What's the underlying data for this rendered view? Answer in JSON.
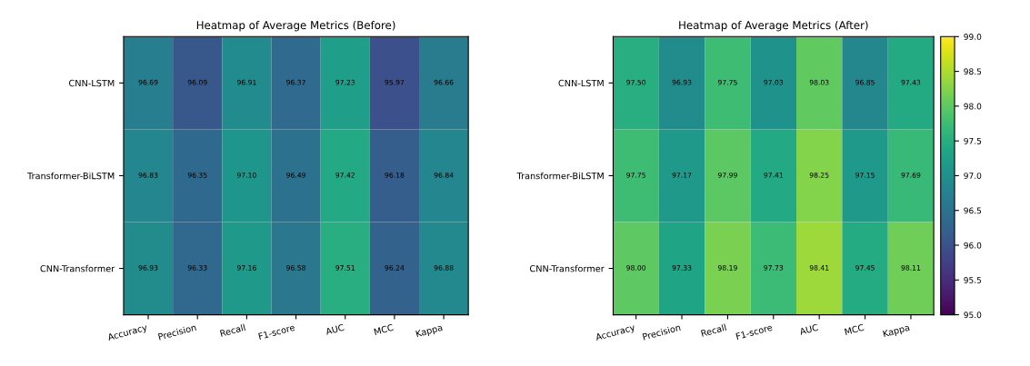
{
  "chart_data": [
    {
      "type": "heatmap",
      "title": "Heatmap of Average Metrics (Before)",
      "categories": [
        "Accuracy",
        "Precision",
        "Recall",
        "F1-score",
        "AUC",
        "MCC",
        "Kappa"
      ],
      "y_categories": [
        "CNN-LSTM",
        "Transformer-BiLSTM",
        "CNN-Transformer"
      ],
      "cells": [
        [
          96.69,
          96.09,
          96.91,
          96.37,
          97.23,
          95.97,
          96.66
        ],
        [
          96.83,
          96.35,
          97.1,
          96.49,
          97.42,
          96.18,
          96.84
        ],
        [
          96.93,
          96.33,
          97.16,
          96.58,
          97.51,
          96.24,
          96.88
        ]
      ],
      "cell_labels": [
        [
          "96.69",
          "96.09",
          "96.91",
          "96.37",
          "97.23",
          "95.97",
          "96.66"
        ],
        [
          "96.83",
          "96.35",
          "97.10",
          "96.49",
          "97.42",
          "96.18",
          "96.84"
        ],
        [
          "96.93",
          "96.33",
          "97.16",
          "96.58",
          "97.51",
          "96.24",
          "96.88"
        ]
      ]
    },
    {
      "type": "heatmap",
      "title": "Heatmap of Average Metrics (After)",
      "categories": [
        "Accuracy",
        "Precision",
        "Recall",
        "F1-score",
        "AUC",
        "MCC",
        "Kappa"
      ],
      "y_categories": [
        "CNN-LSTM",
        "Transformer-BiLSTM",
        "CNN-Transformer"
      ],
      "cells": [
        [
          97.5,
          96.93,
          97.75,
          97.03,
          98.03,
          96.85,
          97.43
        ],
        [
          97.75,
          97.17,
          97.99,
          97.41,
          98.25,
          97.15,
          97.69
        ],
        [
          98.0,
          97.33,
          98.19,
          97.73,
          98.41,
          97.45,
          98.11
        ]
      ],
      "cell_labels": [
        [
          "97.50",
          "96.93",
          "97.75",
          "97.03",
          "98.03",
          "96.85",
          "97.43"
        ],
        [
          "97.75",
          "97.17",
          "97.99",
          "97.41",
          "98.25",
          "97.15",
          "97.69"
        ],
        [
          "98.00",
          "97.33",
          "98.19",
          "97.73",
          "98.41",
          "97.45",
          "98.11"
        ]
      ],
      "clim": [
        95.0,
        99.0
      ],
      "cticks": [
        {
          "value": 95.0,
          "label": "95.0"
        },
        {
          "value": 95.5,
          "label": "95.5"
        },
        {
          "value": 96.0,
          "label": "96.0"
        },
        {
          "value": 96.5,
          "label": "96.5"
        },
        {
          "value": 97.0,
          "label": "97.0"
        },
        {
          "value": 97.5,
          "label": "97.5"
        },
        {
          "value": 98.0,
          "label": "98.0"
        },
        {
          "value": 98.5,
          "label": "98.5"
        },
        {
          "value": 99.0,
          "label": "99.0"
        }
      ]
    }
  ]
}
